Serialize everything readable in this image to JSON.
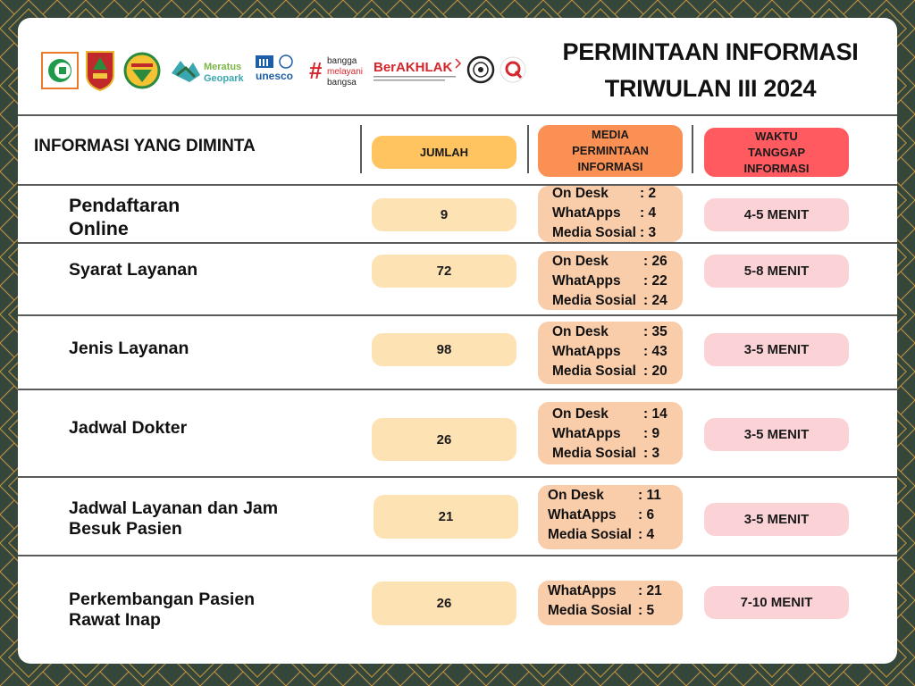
{
  "title_line1": "PERMINTAAN INFORMASI",
  "title_line2": "TRIWULAN III 2024",
  "logos": {
    "geopark_text1": "Meratus",
    "geopark_text2": "Geopark",
    "unesco_text": "unesco",
    "bangga1": "bangga",
    "bangga2": "melayani",
    "bangga3": "bangsa",
    "berakhlak": "BerAKHLAK"
  },
  "headers": {
    "info": "INFORMASI YANG DIMINTA",
    "jumlah": "JUMLAH",
    "media": "MEDIA PERMINTAAN INFORMASI",
    "waktu": "WAKTU TANGGAP INFORMASI"
  },
  "rows": [
    {
      "name": "Pendaftaran Online",
      "jumlah": "9",
      "media": [
        {
          "label": "On Desk",
          "value": ":  2"
        },
        {
          "label": "WhatApps",
          "value": ":  4"
        },
        {
          "label": "Media Sosial",
          "value": ":  3"
        }
      ],
      "waktu": "4-5 MENIT"
    },
    {
      "name": "Syarat Layanan",
      "jumlah": "72",
      "media": [
        {
          "label": "On Desk",
          "value": ": 26"
        },
        {
          "label": "WhatApps",
          "value": ": 22"
        },
        {
          "label": "Media Sosial",
          "value": ": 24"
        }
      ],
      "waktu": "5-8 MENIT"
    },
    {
      "name": "Jenis Layanan",
      "jumlah": "98",
      "media": [
        {
          "label": "On Desk",
          "value": ":  35"
        },
        {
          "label": "WhatApps",
          "value": ":  43"
        },
        {
          "label": "Media Sosial",
          "value": ":  20"
        }
      ],
      "waktu": "3-5 MENIT"
    },
    {
      "name": "Jadwal Dokter",
      "jumlah": "26",
      "media": [
        {
          "label": "On Desk",
          "value": ": 14"
        },
        {
          "label": "WhatApps",
          "value": ": 9"
        },
        {
          "label": "Media Sosial",
          "value": ": 3"
        }
      ],
      "waktu": "3-5 MENIT"
    },
    {
      "name": "Jadwal Layanan dan Jam Besuk Pasien",
      "jumlah": "21",
      "media": [
        {
          "label": "On Desk",
          "value": ":  11"
        },
        {
          "label": "WhatApps",
          "value": ":  6"
        },
        {
          "label": "Media Sosial",
          "value": ":  4"
        }
      ],
      "waktu": "3-5 MENIT"
    },
    {
      "name": "Perkembangan Pasien Rawat Inap",
      "jumlah": "26",
      "media": [
        {
          "label": "WhatApps",
          "value": ":  21"
        },
        {
          "label": "Media Sosial",
          "value": ":  5"
        }
      ],
      "waktu": "7-10 MENIT"
    }
  ],
  "colors": {
    "background": "#35473a",
    "pattern": "#b58f43",
    "jumlah_header": "#ffc45f",
    "media_header": "#fa9053",
    "waktu_header": "#ff5a5f",
    "jumlah_cell": "#fde2b4",
    "media_cell": "#f9ccaa",
    "waktu_cell": "#fbd3d6"
  }
}
